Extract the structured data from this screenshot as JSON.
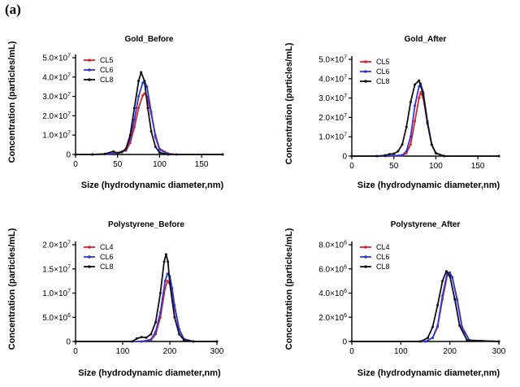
{
  "figure_label": "(a)",
  "chart_data": [
    {
      "type": "line",
      "title": "Gold_Before",
      "xlabel": "Size (hydrodynamic diameter,nm)",
      "ylabel": "Concentration (particles/mL)",
      "xlim": [
        0,
        175
      ],
      "ylim": [
        0,
        50000000
      ],
      "xticks": [
        0,
        50,
        100,
        150
      ],
      "yticks": [
        {
          "value": 0,
          "label": "0"
        },
        {
          "value": 10000000,
          "label": "1.0×10",
          "exp": "7"
        },
        {
          "value": 20000000,
          "label": "2.0×10",
          "exp": "7"
        },
        {
          "value": 30000000,
          "label": "3.0×10",
          "exp": "7"
        },
        {
          "value": 40000000,
          "label": "4.0×10",
          "exp": "7"
        },
        {
          "value": 50000000,
          "label": "5.0×10",
          "exp": "7"
        }
      ],
      "legend_position": "top-left",
      "series": [
        {
          "name": "CL5",
          "color": "#e0202a",
          "x": [
            0,
            20,
            40,
            50,
            60,
            65,
            70,
            75,
            80,
            82,
            85,
            90,
            95,
            100,
            110,
            120,
            175
          ],
          "y": [
            0,
            0,
            200000,
            600000,
            2000000,
            6000000,
            14000000,
            24000000,
            30500000,
            31500000,
            30000000,
            21000000,
            10000000,
            3000000,
            500000,
            0,
            0
          ]
        },
        {
          "name": "CL6",
          "color": "#2a3ae0",
          "x": [
            0,
            20,
            40,
            50,
            60,
            65,
            70,
            75,
            80,
            82,
            85,
            90,
            95,
            100,
            110,
            120,
            175
          ],
          "y": [
            0,
            0,
            300000,
            800000,
            2500000,
            8000000,
            18000000,
            30000000,
            37000000,
            38000000,
            35000000,
            22000000,
            9000000,
            2500000,
            300000,
            0,
            0
          ]
        },
        {
          "name": "CL8",
          "color": "#111111",
          "x": [
            0,
            20,
            35,
            45,
            50,
            55,
            60,
            65,
            70,
            75,
            78,
            82,
            86,
            90,
            95,
            100,
            110,
            175
          ],
          "y": [
            0,
            0,
            300000,
            1500000,
            700000,
            1200000,
            3000000,
            10000000,
            24000000,
            38000000,
            42500000,
            38000000,
            24000000,
            12000000,
            4000000,
            1000000,
            0,
            0
          ]
        }
      ]
    },
    {
      "type": "line",
      "title": "Gold_After",
      "xlabel": "Size (hydrodynamic diameter,nm)",
      "ylabel": "Concentration (particles/mL)",
      "xlim": [
        0,
        175
      ],
      "ylim": [
        0,
        50000000
      ],
      "xticks": [
        0,
        50,
        100,
        150
      ],
      "yticks": [
        {
          "value": 0,
          "label": "0"
        },
        {
          "value": 10000000,
          "label": "1.0×10",
          "exp": "7"
        },
        {
          "value": 20000000,
          "label": "2.0×10",
          "exp": "7"
        },
        {
          "value": 30000000,
          "label": "3.0×10",
          "exp": "7"
        },
        {
          "value": 40000000,
          "label": "4.0×10",
          "exp": "7"
        },
        {
          "value": 50000000,
          "label": "5.0×10",
          "exp": "7"
        }
      ],
      "legend_position": "top-left",
      "series": [
        {
          "name": "CL5",
          "color": "#e0202a",
          "x": [
            0,
            40,
            60,
            65,
            70,
            75,
            80,
            82,
            85,
            90,
            95,
            100,
            110,
            175
          ],
          "y": [
            0,
            0,
            300000,
            1500000,
            6000000,
            18000000,
            30000000,
            33000000,
            30000000,
            17000000,
            6000000,
            1500000,
            0,
            0
          ]
        },
        {
          "name": "CL6",
          "color": "#2a3ae0",
          "x": [
            0,
            40,
            60,
            65,
            70,
            75,
            80,
            82,
            85,
            90,
            95,
            100,
            110,
            175
          ],
          "y": [
            0,
            0,
            500000,
            2500000,
            10000000,
            26000000,
            36000000,
            37500000,
            33000000,
            18000000,
            6000000,
            1500000,
            0,
            0
          ]
        },
        {
          "name": "CL8",
          "color": "#111111",
          "x": [
            0,
            30,
            40,
            45,
            50,
            55,
            60,
            65,
            70,
            75,
            80,
            85,
            90,
            95,
            100,
            110,
            175
          ],
          "y": [
            0,
            0,
            400000,
            1000000,
            1200000,
            2500000,
            6000000,
            15000000,
            28000000,
            37000000,
            39000000,
            32000000,
            17000000,
            6000000,
            1500000,
            0,
            0
          ]
        }
      ]
    },
    {
      "type": "line",
      "title": "Polystyrene_Before",
      "xlabel": "Size (hydrodynamic diameter,nm)",
      "ylabel": "Concentration (particles/mL)",
      "xlim": [
        0,
        300
      ],
      "ylim": [
        0,
        20000000
      ],
      "xticks": [
        0,
        100,
        200,
        300
      ],
      "yticks": [
        {
          "value": 0,
          "label": "0"
        },
        {
          "value": 5000000,
          "label": "5.0×10",
          "exp": "6"
        },
        {
          "value": 10000000,
          "label": "1.0×10",
          "exp": "7"
        },
        {
          "value": 15000000,
          "label": "1.5×10",
          "exp": "7"
        },
        {
          "value": 20000000,
          "label": "2.0×10",
          "exp": "7"
        }
      ],
      "legend_position": "top-left",
      "series": [
        {
          "name": "CL4",
          "color": "#e0202a",
          "x": [
            0,
            140,
            160,
            170,
            180,
            190,
            195,
            200,
            205,
            210,
            220,
            230,
            250,
            300
          ],
          "y": [
            0,
            0,
            300000,
            1500000,
            5000000,
            11000000,
            12500000,
            12000000,
            10000000,
            7000000,
            2500000,
            500000,
            0,
            0
          ]
        },
        {
          "name": "CL6",
          "color": "#2a3ae0",
          "x": [
            0,
            140,
            160,
            170,
            180,
            190,
            195,
            200,
            205,
            210,
            220,
            230,
            250,
            300
          ],
          "y": [
            0,
            0,
            400000,
            2000000,
            6000000,
            12500000,
            14000000,
            13500000,
            11000000,
            7500000,
            2500000,
            500000,
            0,
            0
          ]
        },
        {
          "name": "CL8",
          "color": "#111111",
          "x": [
            0,
            120,
            130,
            140,
            150,
            160,
            170,
            180,
            188,
            192,
            196,
            200,
            210,
            220,
            230,
            250,
            300
          ],
          "y": [
            0,
            0,
            600000,
            900000,
            800000,
            1500000,
            4000000,
            10000000,
            16500000,
            18000000,
            16500000,
            12000000,
            5000000,
            1500000,
            300000,
            0,
            0
          ]
        }
      ]
    },
    {
      "type": "line",
      "title": "Polystyrene_After",
      "xlabel": "Size (hydrodynamic diameter,nm)",
      "ylabel": "Concentration (particles/mL)",
      "xlim": [
        0,
        300
      ],
      "ylim": [
        0,
        8000000
      ],
      "xticks": [
        0,
        100,
        200,
        300
      ],
      "yticks": [
        {
          "value": 0,
          "label": "0"
        },
        {
          "value": 2000000,
          "label": "2.0×10",
          "exp": "6"
        },
        {
          "value": 4000000,
          "label": "4.0×10",
          "exp": "6"
        },
        {
          "value": 6000000,
          "label": "6.0×10",
          "exp": "6"
        },
        {
          "value": 8000000,
          "label": "8.0×10",
          "exp": "6"
        }
      ],
      "legend_position": "top-left",
      "series": [
        {
          "name": "CL4",
          "color": "#e0202a",
          "x": [
            0,
            150,
            165,
            175,
            185,
            195,
            200,
            205,
            215,
            225,
            240,
            300
          ],
          "y": [
            0,
            0,
            300000,
            1200000,
            3500000,
            5500000,
            5600000,
            5300000,
            3500000,
            1200000,
            100000,
            0
          ]
        },
        {
          "name": "CL6",
          "color": "#2a3ae0",
          "x": [
            0,
            150,
            165,
            175,
            185,
            195,
            200,
            205,
            215,
            225,
            240,
            300
          ],
          "y": [
            0,
            0,
            300000,
            1300000,
            3800000,
            5700000,
            5700000,
            5300000,
            3400000,
            1100000,
            100000,
            0
          ]
        },
        {
          "name": "CL8",
          "color": "#111111",
          "x": [
            0,
            140,
            155,
            165,
            175,
            185,
            193,
            200,
            210,
            220,
            235,
            300
          ],
          "y": [
            0,
            0,
            300000,
            1200000,
            3000000,
            5000000,
            5800000,
            5400000,
            3500000,
            1300000,
            100000,
            0
          ]
        }
      ]
    }
  ]
}
